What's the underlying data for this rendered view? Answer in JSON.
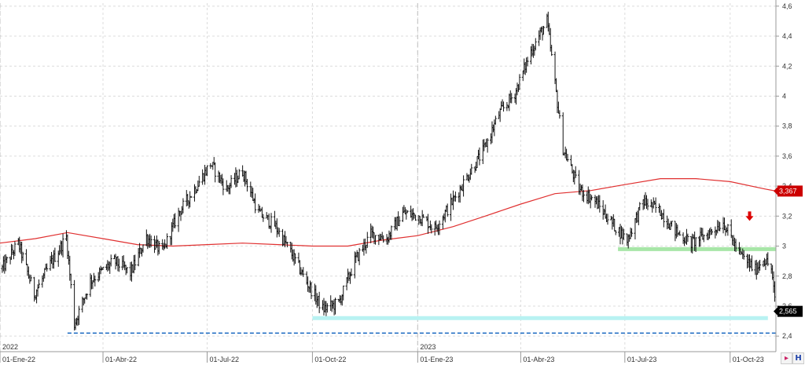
{
  "chart_data": {
    "type": "bar",
    "subtype": "ohlc",
    "x_range": [
      "2022-01-01",
      "2023-11-10"
    ],
    "ylim": [
      2.38,
      4.62
    ],
    "y_ticks": [
      "2,4",
      "2,6",
      "2,8",
      "3",
      "3,2",
      "3,4",
      "3,6",
      "3,8",
      "4",
      "4,2",
      "4,4",
      "4,6"
    ],
    "y_tick_values": [
      2.4,
      2.6,
      2.8,
      3.0,
      3.2,
      3.4,
      3.6,
      3.8,
      4.0,
      4.2,
      4.4,
      4.6
    ],
    "x_ticks": [
      {
        "label": "01-Ene-22",
        "date": "2022-01-01"
      },
      {
        "label": "01-Abr-22",
        "date": "2022-04-01"
      },
      {
        "label": "01-Jul-22",
        "date": "2022-07-01"
      },
      {
        "label": "01-Oct-22",
        "date": "2022-10-01"
      },
      {
        "label": "01-Ene-23",
        "date": "2023-01-01"
      },
      {
        "label": "01-Abr-23",
        "date": "2023-04-01"
      },
      {
        "label": "01-Jul-23",
        "date": "2023-07-01"
      },
      {
        "label": "01-Oct-23",
        "date": "2023-10-01"
      }
    ],
    "year_ticks": [
      {
        "label": "2022",
        "date": "2022-01-01"
      },
      {
        "label": "2023",
        "date": "2023-01-01"
      }
    ],
    "grid": true,
    "price_series": [
      [
        "2022-01-03",
        2.85
      ],
      [
        "2022-01-17",
        3.02
      ],
      [
        "2022-01-31",
        2.68
      ],
      [
        "2022-02-14",
        2.88
      ],
      [
        "2022-02-28",
        3.06
      ],
      [
        "2022-03-07",
        2.48
      ],
      [
        "2022-03-21",
        2.77
      ],
      [
        "2022-04-11",
        2.9
      ],
      [
        "2022-04-25",
        2.82
      ],
      [
        "2022-05-09",
        3.06
      ],
      [
        "2022-05-23",
        2.96
      ],
      [
        "2022-06-06",
        3.22
      ],
      [
        "2022-06-20",
        3.38
      ],
      [
        "2022-07-04",
        3.55
      ],
      [
        "2022-07-18",
        3.38
      ],
      [
        "2022-08-01",
        3.5
      ],
      [
        "2022-08-15",
        3.22
      ],
      [
        "2022-08-29",
        3.14
      ],
      [
        "2022-09-12",
        2.96
      ],
      [
        "2022-09-26",
        2.76
      ],
      [
        "2022-10-10",
        2.58
      ],
      [
        "2022-10-24",
        2.62
      ],
      [
        "2022-11-07",
        2.9
      ],
      [
        "2022-11-21",
        3.08
      ],
      [
        "2022-12-05",
        3.05
      ],
      [
        "2022-12-19",
        3.22
      ],
      [
        "2023-01-02",
        3.2
      ],
      [
        "2023-01-16",
        3.12
      ],
      [
        "2023-01-30",
        3.28
      ],
      [
        "2023-02-13",
        3.46
      ],
      [
        "2023-02-27",
        3.63
      ],
      [
        "2023-03-13",
        3.88
      ],
      [
        "2023-03-27",
        4.02
      ],
      [
        "2023-04-10",
        4.3
      ],
      [
        "2023-04-24",
        4.5
      ],
      [
        "2023-05-01",
        4.08
      ],
      [
        "2023-05-08",
        3.65
      ],
      [
        "2023-05-22",
        3.38
      ],
      [
        "2023-06-05",
        3.3
      ],
      [
        "2023-06-19",
        3.16
      ],
      [
        "2023-07-03",
        3.04
      ],
      [
        "2023-07-17",
        3.3
      ],
      [
        "2023-07-31",
        3.24
      ],
      [
        "2023-08-14",
        3.1
      ],
      [
        "2023-08-28",
        3.02
      ],
      [
        "2023-09-11",
        3.08
      ],
      [
        "2023-09-25",
        3.16
      ],
      [
        "2023-10-09",
        2.95
      ],
      [
        "2023-10-23",
        2.84
      ],
      [
        "2023-10-30",
        2.92
      ],
      [
        "2023-11-06",
        2.85
      ],
      [
        "2023-11-10",
        2.565
      ]
    ],
    "moving_average": [
      [
        "2022-01-01",
        3.02
      ],
      [
        "2022-02-01",
        3.05
      ],
      [
        "2022-03-01",
        3.09
      ],
      [
        "2022-04-01",
        3.05
      ],
      [
        "2022-05-01",
        3.01
      ],
      [
        "2022-06-01",
        3.0
      ],
      [
        "2022-07-01",
        3.01
      ],
      [
        "2022-08-01",
        3.02
      ],
      [
        "2022-09-01",
        3.01
      ],
      [
        "2022-10-01",
        3.0
      ],
      [
        "2022-11-01",
        3.0
      ],
      [
        "2022-12-01",
        3.04
      ],
      [
        "2023-01-01",
        3.07
      ],
      [
        "2023-02-01",
        3.13
      ],
      [
        "2023-03-01",
        3.2
      ],
      [
        "2023-04-01",
        3.28
      ],
      [
        "2023-05-01",
        3.35
      ],
      [
        "2023-06-01",
        3.37
      ],
      [
        "2023-07-01",
        3.41
      ],
      [
        "2023-08-01",
        3.45
      ],
      [
        "2023-09-01",
        3.45
      ],
      [
        "2023-10-01",
        3.43
      ],
      [
        "2023-11-01",
        3.38
      ],
      [
        "2023-11-10",
        3.367
      ]
    ],
    "annotations": {
      "support_green": {
        "y": 2.98,
        "from": "2023-06-25",
        "to": "2023-11-10",
        "color": "#a8e6a8"
      },
      "support_cyan": {
        "y": 2.52,
        "from": "2022-10-01",
        "to": "2023-11-03",
        "color": "#b8f2f2"
      },
      "support_dashed": {
        "y": 2.42,
        "from": "2022-03-01",
        "to": "2023-11-10",
        "color": "#1565c0"
      },
      "arrow_down": {
        "date": "2023-10-18",
        "y": 3.2,
        "color": "#dd0000"
      }
    },
    "tags": [
      {
        "label": "3,367",
        "value": 3.367,
        "background": "#cc0000",
        "color": "#ffffff"
      },
      {
        "label": "2,565",
        "value": 2.565,
        "background": "#000000",
        "color": "#ffffff"
      }
    ]
  },
  "colors": {
    "price": "#111111",
    "moving_average": "#e03030",
    "grid": "#dcdcdc",
    "axis": "#999999"
  },
  "icons": [
    "scroll-right-icon",
    "horizontal-zoom-icon"
  ]
}
